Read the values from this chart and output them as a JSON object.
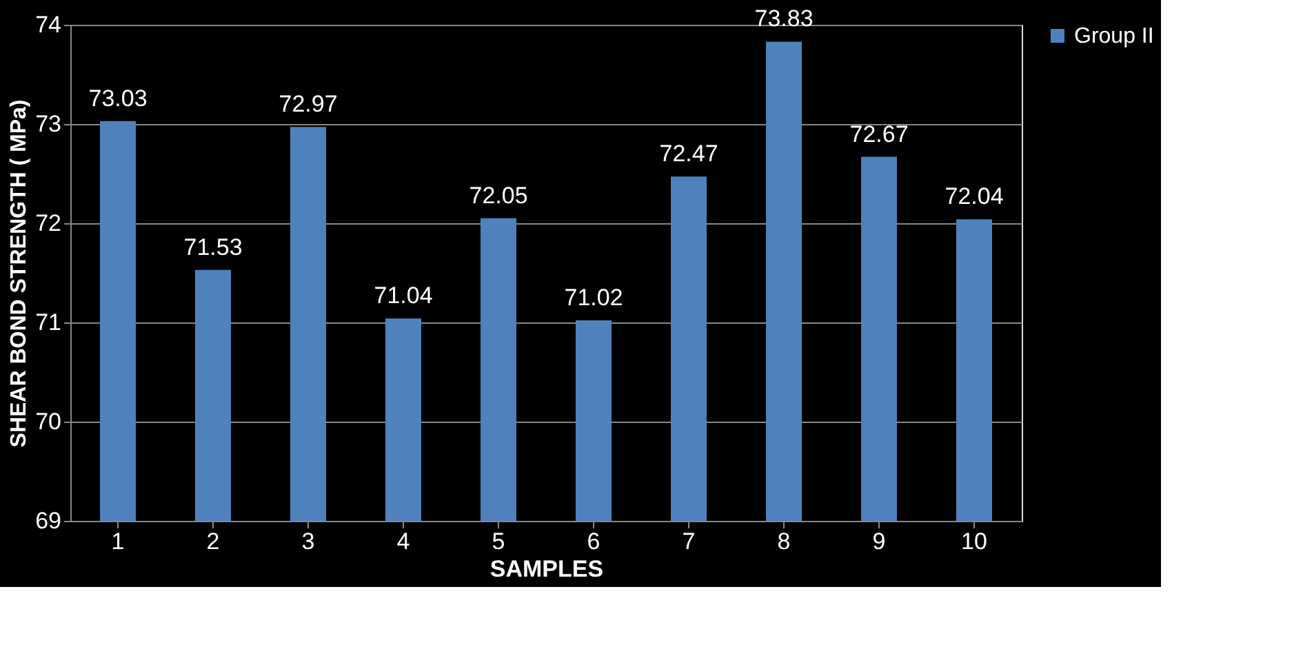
{
  "chart_data": {
    "type": "bar",
    "xlabel": "SAMPLES",
    "ylabel": "SHEAR BOND STRENGTH ( MPa)",
    "categories": [
      "1",
      "2",
      "3",
      "4",
      "5",
      "6",
      "7",
      "8",
      "9",
      "10"
    ],
    "series": [
      {
        "name": "Group II",
        "color": "#4f81bd",
        "values": [
          73.03,
          71.53,
          72.97,
          71.04,
          72.05,
          71.02,
          72.47,
          73.83,
          72.67,
          72.04
        ]
      }
    ],
    "ylim": [
      69,
      74
    ],
    "yticks": [
      69,
      70,
      71,
      72,
      73,
      74
    ],
    "grid": "y",
    "legend": "right",
    "data_labels": true
  }
}
